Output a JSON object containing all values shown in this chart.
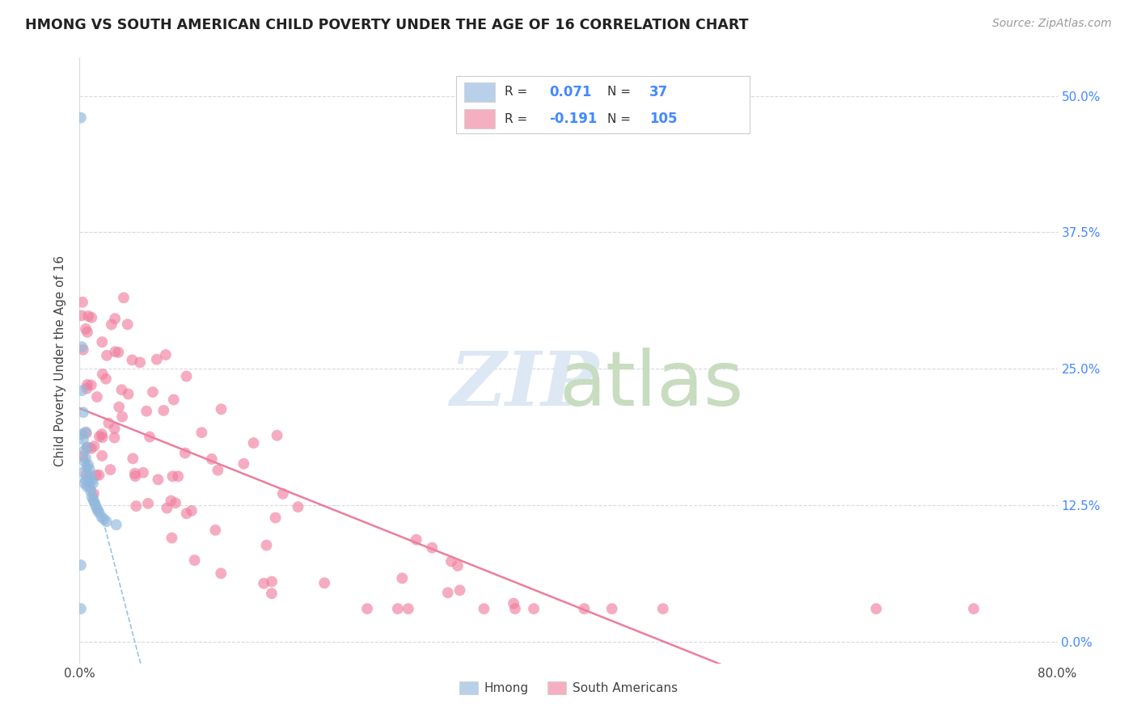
{
  "title": "HMONG VS SOUTH AMERICAN CHILD POVERTY UNDER THE AGE OF 16 CORRELATION CHART",
  "source": "Source: ZipAtlas.com",
  "ylabel": "Child Poverty Under the Age of 16",
  "xlim": [
    0.0,
    0.8
  ],
  "ylim": [
    -0.02,
    0.535
  ],
  "yticks": [
    0.0,
    0.125,
    0.25,
    0.375,
    0.5
  ],
  "ytick_labels": [
    "0.0%",
    "12.5%",
    "25.0%",
    "37.5%",
    "50.0%"
  ],
  "xticks": [
    0.0,
    0.1,
    0.2,
    0.3,
    0.4,
    0.5,
    0.6,
    0.7,
    0.8
  ],
  "xtick_labels": [
    "0.0%",
    "",
    "",
    "",
    "",
    "",
    "",
    "",
    "80.0%"
  ],
  "hmong_color": "#b8d0ea",
  "hmong_dot_color": "#90b8dc",
  "sa_color": "#f4b0c0",
  "sa_dot_color": "#f080a0",
  "hmong_line_color": "#90b8d8",
  "sa_line_color": "#e87090",
  "grid_color": "#d8d8e4",
  "title_color": "#222222",
  "source_color": "#999999",
  "axis_label_color": "#444444",
  "tick_color_right": "#4488ff",
  "legend_border_color": "#cccccc",
  "legend_text_color": "#333333",
  "legend_value_color": "#4488ff",
  "watermark_zip_color": "#dde8f4",
  "watermark_atlas_color": "#c8dcc0"
}
